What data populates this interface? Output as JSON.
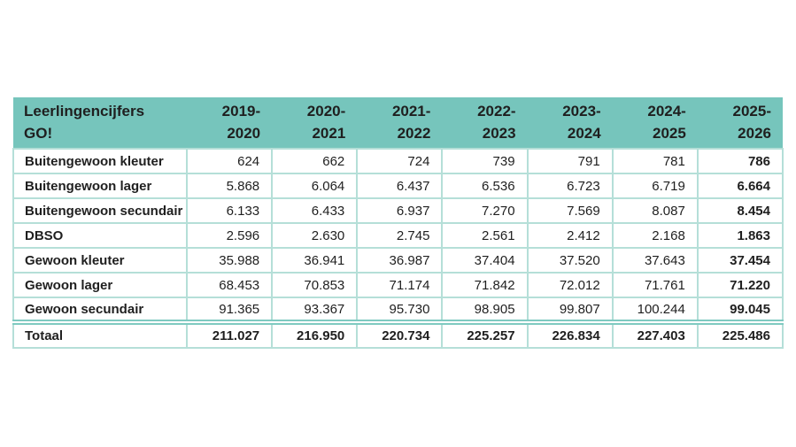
{
  "table": {
    "header": {
      "title": "Leerlingencijfers\nGO!",
      "years": [
        "2019-\n2020",
        "2020-\n2021",
        "2021-\n2022",
        "2022-\n2023",
        "2023-\n2024",
        "2024-\n2025",
        "2025-\n2026"
      ]
    },
    "rows": [
      {
        "label": "Buitengewoon kleuter",
        "values": [
          "624",
          "662",
          "724",
          "739",
          "791",
          "781",
          "786"
        ]
      },
      {
        "label": "Buitengewoon lager",
        "values": [
          "5.868",
          "6.064",
          "6.437",
          "6.536",
          "6.723",
          "6.719",
          "6.664"
        ]
      },
      {
        "label": "Buitengewoon secundair",
        "values": [
          "6.133",
          "6.433",
          "6.937",
          "7.270",
          "7.569",
          "8.087",
          "8.454"
        ]
      },
      {
        "label": "DBSO",
        "values": [
          "2.596",
          "2.630",
          "2.745",
          "2.561",
          "2.412",
          "2.168",
          "1.863"
        ]
      },
      {
        "label": "Gewoon kleuter",
        "values": [
          "35.988",
          "36.941",
          "36.987",
          "37.404",
          "37.520",
          "37.643",
          "37.454"
        ]
      },
      {
        "label": "Gewoon lager",
        "values": [
          "68.453",
          "70.853",
          "71.174",
          "71.842",
          "72.012",
          "71.761",
          "71.220"
        ]
      },
      {
        "label": "Gewoon secundair",
        "values": [
          "91.365",
          "93.367",
          "95.730",
          "98.905",
          "99.807",
          "100.244",
          "99.045"
        ]
      }
    ],
    "total": {
      "label": "Totaal",
      "values": [
        "211.027",
        "216.950",
        "220.734",
        "225.257",
        "226.834",
        "227.403",
        "225.486"
      ]
    }
  },
  "colors": {
    "header_background": "#76c5bc",
    "border_light": "#b5dfd8",
    "border_double": "#7fcac1",
    "text": "#1f1f1f",
    "page_background": "#ffffff"
  }
}
